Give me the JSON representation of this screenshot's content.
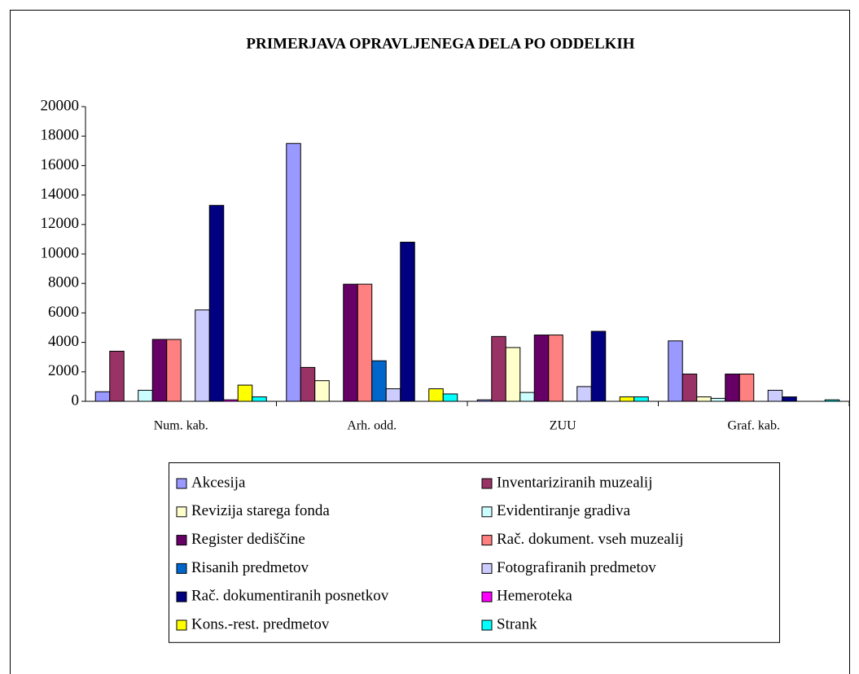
{
  "chart_data": {
    "type": "bar",
    "title": "PRIMERJAVA OPRAVLJENEGA DELA PO ODDELKIH",
    "categories": [
      "Num. kab.",
      "Arh. odd.",
      "ZUU",
      "Graf. kab."
    ],
    "series": [
      {
        "name": "Akcesija",
        "color": "#9999FF",
        "values": [
          650,
          17500,
          100,
          4100
        ]
      },
      {
        "name": "Inventariziranih muzealij",
        "color": "#993366",
        "values": [
          3400,
          2300,
          4400,
          1850
        ]
      },
      {
        "name": "Revizija starega fonda",
        "color": "#FFFFCC",
        "values": [
          0,
          1400,
          3650,
          300
        ]
      },
      {
        "name": "Evidentiranje gradiva",
        "color": "#CCFFFF",
        "values": [
          750,
          0,
          600,
          200
        ]
      },
      {
        "name": "Register dediščine",
        "color": "#660066",
        "values": [
          4200,
          7950,
          4500,
          1850
        ]
      },
      {
        "name": "Rač. dokument. vseh muzealij",
        "color": "#FF8080",
        "values": [
          4200,
          7950,
          4500,
          1850
        ]
      },
      {
        "name": "Risanih predmetov",
        "color": "#0066CC",
        "values": [
          0,
          2750,
          0,
          0
        ]
      },
      {
        "name": "Fotografiranih predmetov",
        "color": "#CCCCFF",
        "values": [
          6200,
          850,
          1000,
          750
        ]
      },
      {
        "name": "Rač. dokumentiranih posnetkov",
        "color": "#000080",
        "values": [
          13300,
          10800,
          4750,
          300
        ]
      },
      {
        "name": "Hemeroteka",
        "color": "#FF00FF",
        "values": [
          100,
          0,
          0,
          0
        ]
      },
      {
        "name": "Kons.-rest. predmetov",
        "color": "#FFFF00",
        "values": [
          1100,
          850,
          300,
          0
        ]
      },
      {
        "name": "Strank",
        "color": "#00FFFF",
        "values": [
          300,
          500,
          300,
          100
        ]
      }
    ],
    "ylim": [
      0,
      20000
    ],
    "yticks": [
      0,
      2000,
      4000,
      6000,
      8000,
      10000,
      12000,
      14000,
      16000,
      18000,
      20000
    ],
    "grid": false,
    "legend": "bottom"
  }
}
